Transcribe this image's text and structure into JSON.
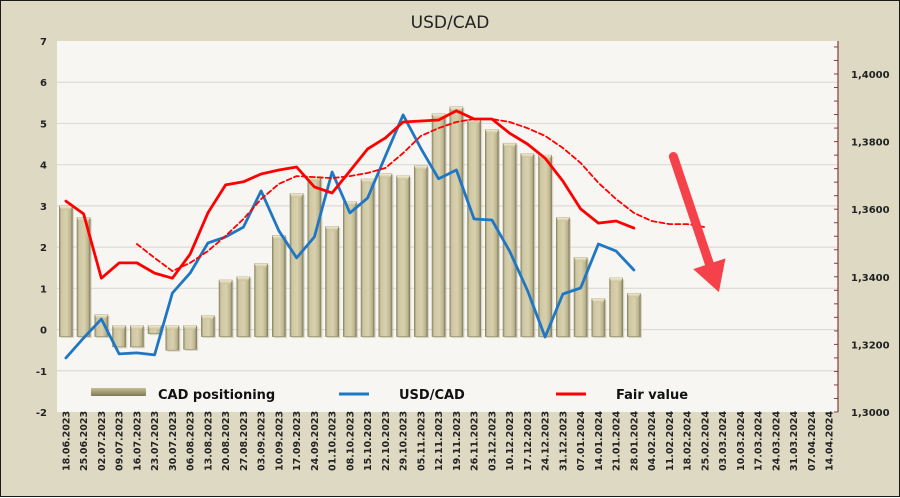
{
  "chart_data": {
    "type": "bar",
    "title": "USD/CAD",
    "xlabel": "",
    "ylabel_left": "",
    "ylabel_right": "",
    "left_axis": {
      "range": [
        -2,
        7
      ],
      "ticks": [
        "7",
        "6",
        "5",
        "4",
        "3",
        "2",
        "1",
        "0",
        "-1",
        "-2"
      ],
      "tick_values": [
        7,
        6,
        5,
        4,
        3,
        2,
        1,
        0,
        -1,
        -2
      ]
    },
    "right_axis": {
      "range": [
        1.3,
        1.41
      ],
      "ticks": [
        "1,4000",
        "1,3800",
        "1,3600",
        "1,3400",
        "1,3200",
        "1,3000"
      ],
      "tick_values": [
        1.4,
        1.38,
        1.36,
        1.34,
        1.32,
        1.3
      ]
    },
    "grid": true,
    "legend_position": "bottom-inside",
    "categories": [
      "18.06.2023",
      "25.06.2023",
      "02.07.2023",
      "09.07.2023",
      "16.07.2023",
      "23.07.2023",
      "30.07.2023",
      "06.08.2023",
      "13.08.2023",
      "20.08.2023",
      "27.08.2023",
      "03.09.2023",
      "10.09.2023",
      "17.09.2023",
      "24.09.2023",
      "01.10.2023",
      "08.10.2023",
      "15.10.2023",
      "22.10.2023",
      "29.10.2023",
      "05.11.2023",
      "12.11.2023",
      "19.11.2023",
      "26.11.2023",
      "03.12.2023",
      "10.12.2023",
      "17.12.2023",
      "24.12.2023",
      "31.12.2023",
      "07.01.2024",
      "14.01.2024",
      "21.01.2024",
      "28.01.2024",
      "04.02.2024",
      "11.02.2024",
      "18.02.2024",
      "25.02.2024",
      "03.03.2024",
      "10.03.2024",
      "17.03.2024",
      "24.03.2024",
      "31.03.2024",
      "07.04.2024",
      "14.04.2024"
    ],
    "series": [
      {
        "name": "CAD positioning",
        "type": "bar",
        "axis": "left",
        "color": "#c9c19a",
        "values": [
          3.0,
          2.72,
          0.36,
          -0.42,
          -0.42,
          -0.1,
          -0.5,
          -0.48,
          0.34,
          1.2,
          1.28,
          1.6,
          2.28,
          3.3,
          3.7,
          2.5,
          3.1,
          3.65,
          3.78,
          3.73,
          3.97,
          5.23,
          5.4,
          5.1,
          4.85,
          4.52,
          4.27,
          4.23,
          2.72,
          1.75,
          0.75,
          1.25,
          0.88,
          null,
          null,
          null,
          null,
          null,
          null,
          null,
          null,
          null,
          null,
          null
        ]
      },
      {
        "name": "USD/CAD",
        "type": "line",
        "axis": "right",
        "color": "#1f77c4",
        "values": [
          1.316,
          1.3219,
          1.3275,
          1.3172,
          1.3175,
          1.3169,
          1.3352,
          1.3411,
          1.35,
          1.3518,
          1.3547,
          1.3654,
          1.3536,
          1.3456,
          1.3518,
          1.371,
          1.3589,
          1.3633,
          1.3757,
          1.3879,
          1.378,
          1.369,
          1.3716,
          1.3571,
          1.3568,
          1.3476,
          1.336,
          1.3222,
          1.3349,
          1.3367,
          1.3497,
          1.3476,
          1.342,
          null,
          null,
          null,
          null,
          null,
          null,
          null,
          null,
          null,
          null,
          null
        ]
      },
      {
        "name": "Fair value",
        "type": "line",
        "axis": "right",
        "color": "#ff0000",
        "values": [
          1.3624,
          1.3586,
          1.3396,
          1.3441,
          1.3441,
          1.3411,
          1.3396,
          1.3467,
          1.3589,
          1.3672,
          1.3681,
          1.3704,
          1.3716,
          1.3725,
          1.3666,
          1.3648,
          1.3713,
          1.3778,
          1.3811,
          1.3858,
          1.3861,
          1.3864,
          1.3891,
          1.3867,
          1.3867,
          1.3825,
          1.3793,
          1.3751,
          1.3683,
          1.3601,
          1.3559,
          1.3565,
          1.3544,
          null,
          null,
          null,
          null,
          null,
          null,
          null,
          null,
          null,
          null,
          null
        ]
      },
      {
        "name": "Fair value trend",
        "type": "line",
        "style": "dashed",
        "axis": "right",
        "color": "#ff0000",
        "in_legend": false,
        "values": [
          null,
          null,
          null,
          null,
          1.3497,
          1.3456,
          1.3417,
          1.3441,
          1.3476,
          1.3521,
          1.3571,
          1.363,
          1.3675,
          1.3698,
          1.3695,
          1.3692,
          1.3698,
          1.3707,
          1.3722,
          1.3766,
          1.3817,
          1.384,
          1.3858,
          1.3867,
          1.3867,
          1.3858,
          1.384,
          1.3817,
          1.3781,
          1.3737,
          1.3678,
          1.363,
          1.3589,
          1.3565,
          1.3556,
          1.3556,
          1.3547,
          null,
          null,
          null,
          null,
          null,
          null,
          null
        ]
      }
    ],
    "legend": [
      {
        "label": "CAD positioning",
        "swatch": "bar",
        "color": "#a39c74"
      },
      {
        "label": "USD/CAD",
        "swatch": "line",
        "color": "#1f77c4"
      },
      {
        "label": "Fair value",
        "swatch": "line",
        "color": "#ff0000"
      }
    ],
    "annotations": [
      {
        "type": "arrow",
        "direction": "down-right",
        "color": "#f5424a",
        "meaning": "expected USD/CAD decline",
        "from": {
          "category": "11.02.2024",
          "value": 1.3756
        },
        "to": {
          "category": "25.02.2024",
          "value": 1.3393
        }
      }
    ]
  }
}
